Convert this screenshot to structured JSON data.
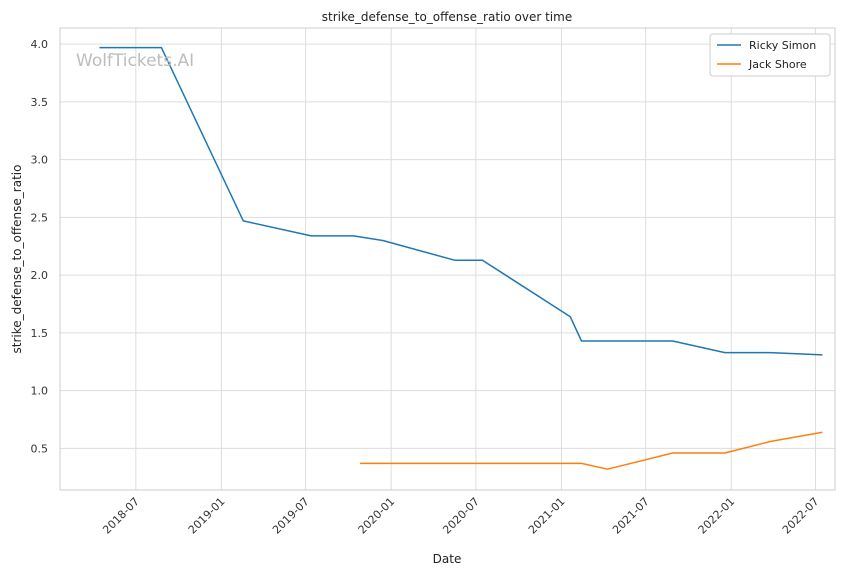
{
  "chart_data": {
    "type": "line",
    "title": "strike_defense_to_offense_ratio over time",
    "xlabel": "Date",
    "ylabel": "strike_defense_to_offense_ratio",
    "watermark": "WolfTickets.AI",
    "x_ticks": [
      "2018-07",
      "2019-01",
      "2019-07",
      "2020-01",
      "2020-07",
      "2021-01",
      "2021-07",
      "2022-01",
      "2022-07"
    ],
    "y_ticks": [
      "0.5",
      "1.0",
      "1.5",
      "2.0",
      "2.5",
      "3.0",
      "3.5",
      "4.0"
    ],
    "xlim": [
      "2018-01-19",
      "2022-08-12"
    ],
    "ylim": [
      0.14,
      4.14
    ],
    "grid": true,
    "legend_position": "top-right",
    "series": [
      {
        "name": "Ricky Simon",
        "color": "#1f77b4",
        "points": [
          {
            "x": "2018-04-14",
            "y": 3.97
          },
          {
            "x": "2018-08-25",
            "y": 3.97
          },
          {
            "x": "2019-02-17",
            "y": 2.47
          },
          {
            "x": "2019-07-13",
            "y": 2.34
          },
          {
            "x": "2019-10-12",
            "y": 2.34
          },
          {
            "x": "2019-12-14",
            "y": 2.3
          },
          {
            "x": "2020-05-16",
            "y": 2.13
          },
          {
            "x": "2020-07-15",
            "y": 2.13
          },
          {
            "x": "2021-01-20",
            "y": 1.64
          },
          {
            "x": "2021-02-13",
            "y": 1.43
          },
          {
            "x": "2021-08-28",
            "y": 1.43
          },
          {
            "x": "2021-12-18",
            "y": 1.33
          },
          {
            "x": "2022-03-26",
            "y": 1.33
          },
          {
            "x": "2022-07-16",
            "y": 1.31
          }
        ]
      },
      {
        "name": "Jack Shore",
        "color": "#ff7f0e",
        "points": [
          {
            "x": "2019-10-26",
            "y": 0.37
          },
          {
            "x": "2021-02-13",
            "y": 0.37
          },
          {
            "x": "2021-04-10",
            "y": 0.32
          },
          {
            "x": "2021-08-28",
            "y": 0.46
          },
          {
            "x": "2021-12-18",
            "y": 0.46
          },
          {
            "x": "2022-03-26",
            "y": 0.56
          },
          {
            "x": "2022-07-16",
            "y": 0.64
          }
        ]
      }
    ]
  }
}
